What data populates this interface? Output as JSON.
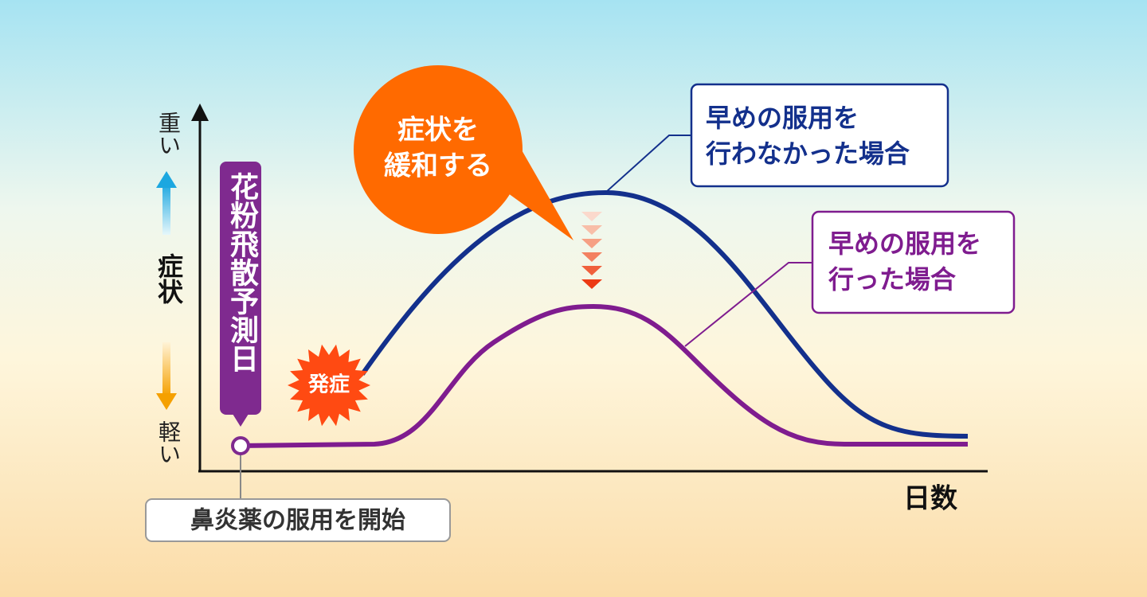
{
  "axis": {
    "y_top": "重い",
    "y_label": "症状",
    "y_bottom": "軽い",
    "x_label": "日数"
  },
  "forecast_label": "花粉飛散予測日",
  "onset_label": "発症",
  "relief_bubble": {
    "lines": [
      "症状を",
      "緩和する"
    ]
  },
  "legend_without": {
    "lines": [
      "早めの服用を",
      "行わなかった場合"
    ]
  },
  "legend_with": {
    "lines": [
      "早めの服用を",
      "行った場合"
    ]
  },
  "start_label": "鼻炎薬の服用を開始"
}
